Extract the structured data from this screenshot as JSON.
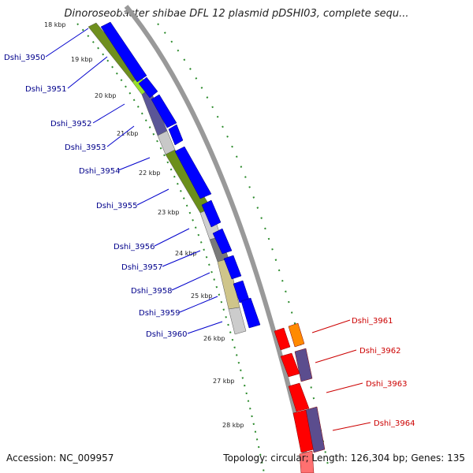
{
  "title": "Dinoroseobacter shibae DFL 12 plasmid pDSHI03, complete sequ...",
  "accession": "Accession: NC_009957",
  "summary": "Topology: circular; Length: 126,304 bp; Genes: 135",
  "ticks": [
    "18 kbp",
    "19 kbp",
    "20 kbp",
    "21 kbp",
    "22 kbp",
    "23 kbp",
    "24 kbp",
    "25 kbp",
    "26 kbp",
    "27 kbp",
    "28 kbp"
  ],
  "genes_left": [
    "Dshi_3950",
    "Dshi_3951",
    "Dshi_3952",
    "Dshi_3953",
    "Dshi_3954",
    "Dshi_3955",
    "Dshi_3956",
    "Dshi_3957",
    "Dshi_3958",
    "Dshi_3959",
    "Dshi_3960"
  ],
  "genes_right": [
    "Dshi_3961",
    "Dshi_3962",
    "Dshi_3963",
    "Dshi_3964"
  ],
  "colors": {
    "left_label": "#00008b",
    "right_label": "#cc0000",
    "blue_gene": "#0000ff",
    "red_gene": "#ff0000",
    "backbone": "#888888",
    "tick": "#2a8a2a"
  }
}
